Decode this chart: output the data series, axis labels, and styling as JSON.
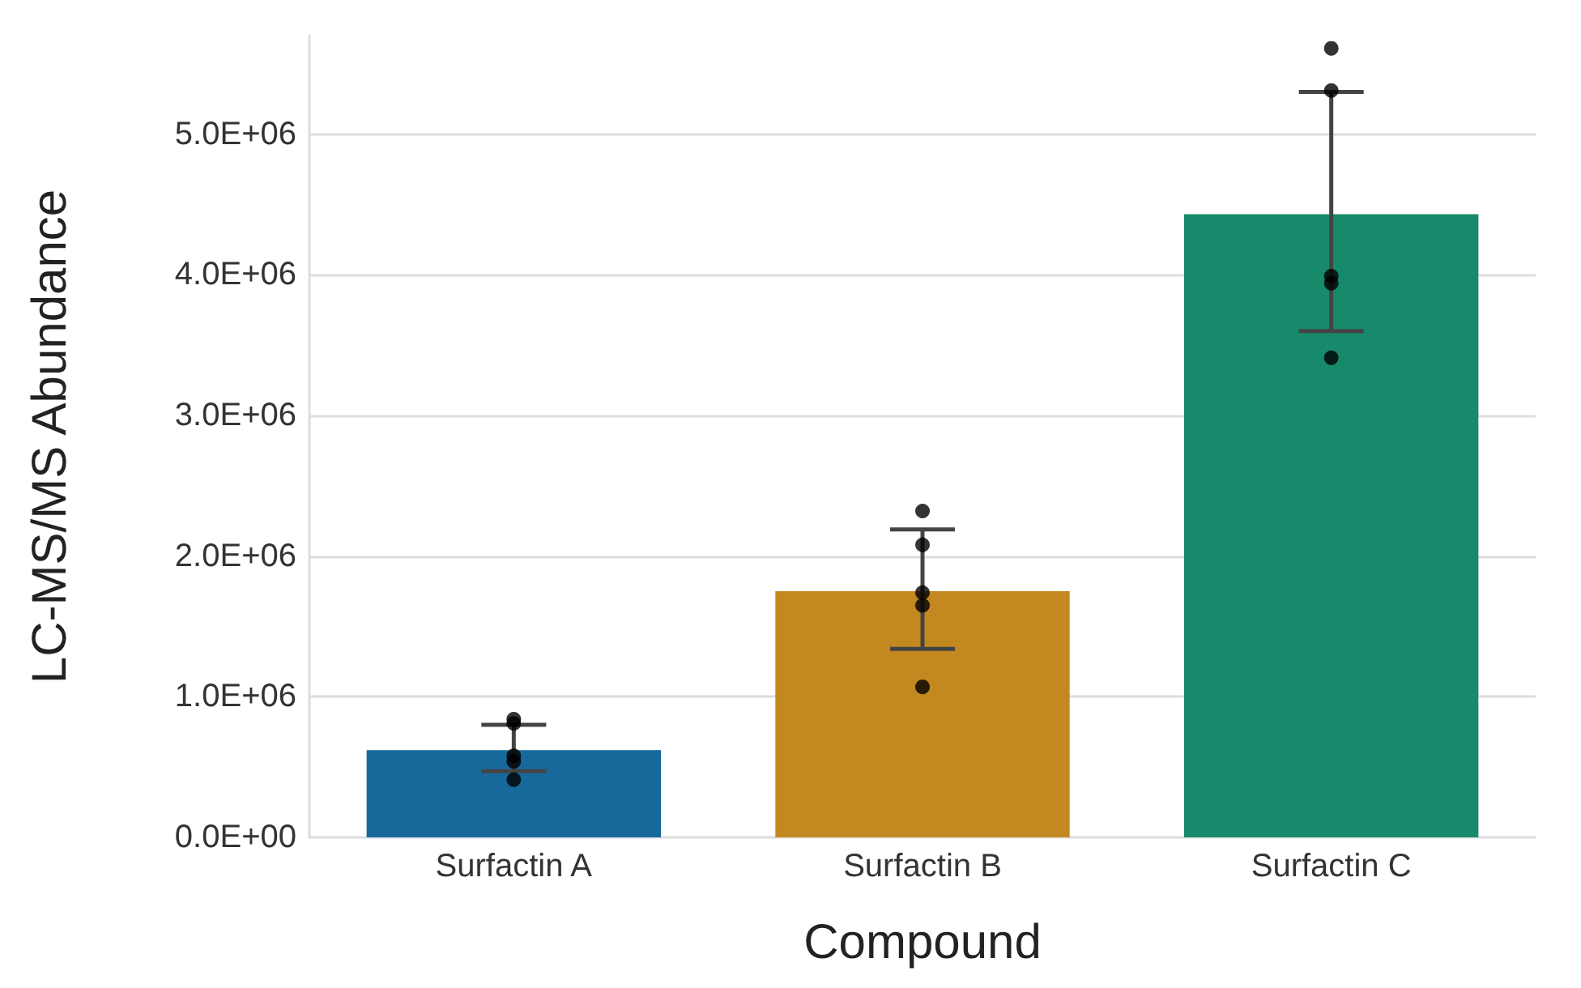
{
  "chart_data": {
    "type": "bar",
    "xlabel": "Compound",
    "ylabel": "LC-MS/MS Abundance",
    "categories": [
      "Surfactin A",
      "Surfactin B",
      "Surfactin C"
    ],
    "series": [
      {
        "values": [
          620000,
          1750000,
          4430000
        ],
        "colors": [
          "#17699c",
          "#c38820",
          "#178a6b"
        ],
        "errors": [
          [
            470000,
            800000
          ],
          [
            1340000,
            2190000
          ],
          [
            3600000,
            5300000
          ]
        ]
      },
      {
        "type": "scatter",
        "color": "#000000",
        "x": [
          "Surfactin A",
          "Surfactin A",
          "Surfactin A",
          "Surfactin A",
          "Surfactin A",
          "Surfactin B",
          "Surfactin B",
          "Surfactin B",
          "Surfactin B",
          "Surfactin B",
          "Surfactin C",
          "Surfactin C",
          "Surfactin C",
          "Surfactin C",
          "Surfactin C"
        ],
        "values": [
          840000,
          810000,
          580000,
          540000,
          410000,
          2320000,
          2080000,
          1740000,
          1650000,
          1070000,
          5610000,
          5310000,
          3990000,
          3940000,
          3410000
        ]
      }
    ],
    "yticks": [
      {
        "value": 0,
        "label": "0.0E+00"
      },
      {
        "value": 1000000,
        "label": "1.0E+06"
      },
      {
        "value": 2000000,
        "label": "2.0E+06"
      },
      {
        "value": 3000000,
        "label": "3.0E+06"
      },
      {
        "value": 4000000,
        "label": "4.0E+06"
      },
      {
        "value": 5000000,
        "label": "5.0E+06"
      }
    ],
    "ylim": [
      0,
      5700000
    ],
    "grid": "y",
    "marker": "circle"
  }
}
